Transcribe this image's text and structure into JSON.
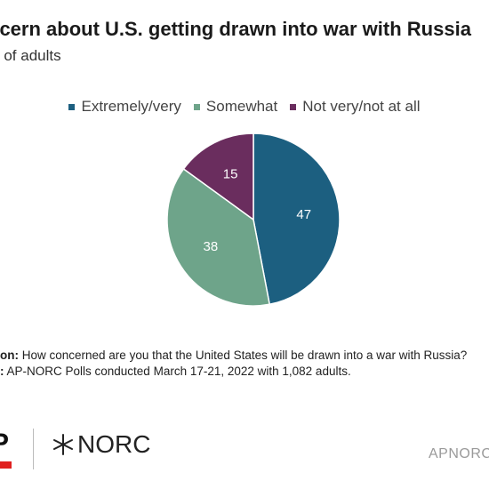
{
  "title": "ncern about U.S. getting drawn into war with Russia",
  "subtitle": "ent of adults",
  "chart_data": {
    "type": "pie",
    "slices": [
      {
        "label": "Extremely/very",
        "value": 47,
        "color": "#1c5f80"
      },
      {
        "label": "Somewhat",
        "value": 38,
        "color": "#6ea48a"
      },
      {
        "label": "Not very/not at all",
        "value": 15,
        "color": "#6a2d5e"
      }
    ],
    "legend_position": "top"
  },
  "footnotes": {
    "question_label": "on:",
    "question_text": " How concerned are you that the United States will be drawn into a war with Russia?",
    "source_label": ":",
    "source_text": " AP-NORC Polls conducted March 17-21, 2022 with 1,082 adults."
  },
  "branding": {
    "ap_text": "P",
    "norc_text": "NORC",
    "site_text": "APNORC.c",
    "ap_red": "#e0201f"
  }
}
